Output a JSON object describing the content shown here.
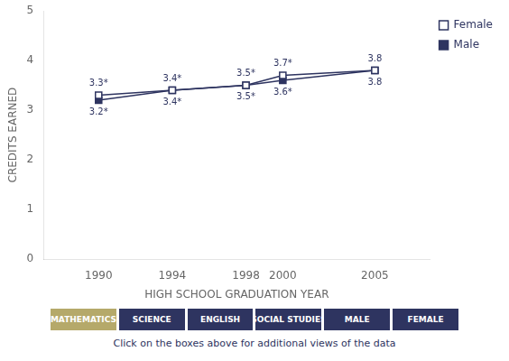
{
  "chart_data": {
    "type": "line",
    "xlabel": "HIGH SCHOOL GRADUATION YEAR",
    "ylabel": "CREDITS EARNED",
    "x": [
      1990,
      1994,
      1998,
      2000,
      2005
    ],
    "xlim": [
      1987,
      2008
    ],
    "xticks": [
      1990,
      1994,
      1998,
      2000,
      2005
    ],
    "ylim": [
      0,
      5
    ],
    "yticks": [
      0,
      1,
      2,
      3,
      4,
      5
    ],
    "grid": false,
    "legend": "right",
    "data_labels": true,
    "series": [
      {
        "name": "Female",
        "color": "#2e3460",
        "marker": "open square",
        "values": [
          3.3,
          3.4,
          3.5,
          3.7,
          3.8
        ],
        "value_labels": [
          "3.3*",
          "3.4*",
          "3.5*",
          "3.7*",
          "3.8"
        ]
      },
      {
        "name": "Male",
        "color": "#2e3460",
        "marker": "square",
        "values": [
          3.2,
          3.4,
          3.5,
          3.6,
          3.8
        ],
        "value_labels": [
          "3.2*",
          "3.4*",
          "3.5*",
          "3.6*",
          "3.8"
        ]
      }
    ],
    "annotations": [
      {
        "text": "MATHEMATICS",
        "color": "#b5a96a"
      },
      {
        "text": "SCIENCE",
        "color": "#2e3460"
      },
      {
        "text": "ENGLISH",
        "color": "#2e3460"
      },
      {
        "text": "SOCIAL STUDIES",
        "color": "#2e3460"
      },
      {
        "text": "MALE",
        "color": "#2e3460"
      },
      {
        "text": "FEMALE",
        "color": "#2e3460"
      }
    ],
    "footer": {
      "text": "Click on the boxes above for additional views of the data",
      "color": "#2e3460"
    }
  }
}
